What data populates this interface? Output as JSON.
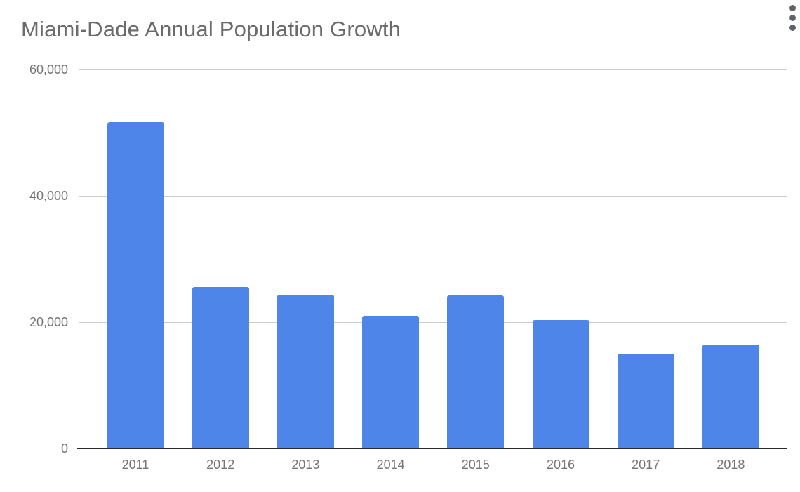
{
  "header": {
    "title": "Miami-Dade Annual Population Growth"
  },
  "menu": {
    "icon": "kebab-menu-icon"
  },
  "chart_data": {
    "type": "bar",
    "title": "Miami-Dade Annual Population Growth",
    "categories": [
      "2011",
      "2012",
      "2013",
      "2014",
      "2015",
      "2016",
      "2017",
      "2018"
    ],
    "values": [
      51700,
      25600,
      24300,
      21000,
      24200,
      20300,
      15000,
      16500
    ],
    "xlabel": "",
    "ylabel": "",
    "ylim": [
      0,
      60000
    ],
    "y_ticks": [
      {
        "value": 0,
        "label": "0"
      },
      {
        "value": 20000,
        "label": "20,000"
      },
      {
        "value": 40000,
        "label": "40,000"
      },
      {
        "value": 60000,
        "label": "60,000"
      }
    ],
    "grid": true,
    "legend": "none",
    "bar_color": "#4d86e8"
  },
  "colors": {
    "background": "#ffffff",
    "title_text": "#6b6b6b",
    "axis_text": "#757575",
    "gridline": "#cccccc",
    "axis_line": "#2a2a2a",
    "menu_icon": "#5f6368",
    "bar": "#4d86e8"
  }
}
